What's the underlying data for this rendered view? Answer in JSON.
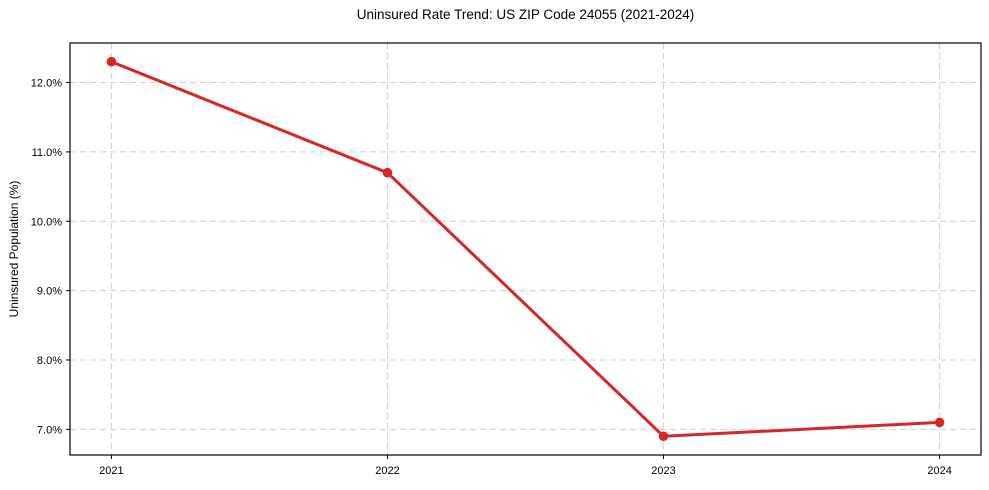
{
  "page": {
    "background": "#ffffff"
  },
  "chart_data": {
    "type": "line",
    "title": "Uninsured Rate Trend: US ZIP Code 24055 (2021-2024)",
    "xlabel": "",
    "ylabel": "Uninsured Population (%)",
    "x": [
      2021,
      2022,
      2023,
      2024
    ],
    "categories": [
      "2021",
      "2022",
      "2023",
      "2024"
    ],
    "values": [
      12.3,
      10.7,
      6.9,
      7.1
    ],
    "unit": "%",
    "xticks": [
      2021,
      2022,
      2023,
      2024
    ],
    "xtick_labels": [
      "2021",
      "2022",
      "2023",
      "2024"
    ],
    "yticks": [
      7,
      8,
      9,
      10,
      11,
      12
    ],
    "ytick_labels": [
      "7.0%",
      "8.0%",
      "9.0%",
      "10.0%",
      "11.0%",
      "12.0%"
    ],
    "xlim": [
      2020.85,
      2024.15
    ],
    "ylim": [
      6.63,
      12.57
    ],
    "grid": true,
    "grid_style": "dashed",
    "legend": "none",
    "line_color": "#d62728",
    "marker": "circle",
    "grid_color": "#cfcfcf",
    "axis_color": "#000000",
    "text_color": "#000000"
  }
}
